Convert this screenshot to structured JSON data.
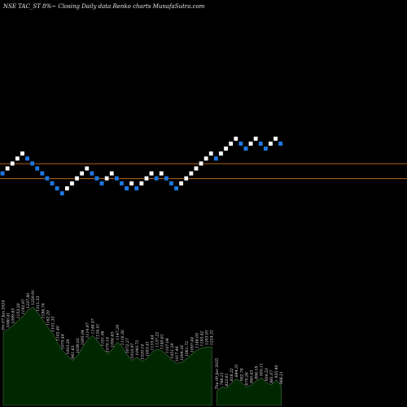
{
  "chart_data": {
    "type": "renko",
    "title": "NSE TAC_ST 8%~  Closing Daily data  Renko  charts MunafaSutra.com",
    "colors": {
      "background": "#000000",
      "up_brick": "#ffffff",
      "down_brick": "#1e78e6",
      "brick_border": "#0a0a0a",
      "reference_line": "#b4641e",
      "volume_fill": "#002800",
      "volume_stroke": "#4a6a4a",
      "volume_label": "#e8e8e8"
    },
    "reference_lines": [
      1,
      4
    ],
    "bricks": [
      {
        "level": 2,
        "dir": "down"
      },
      {
        "level": 3,
        "dir": "up"
      },
      {
        "level": 4,
        "dir": "up"
      },
      {
        "level": 5,
        "dir": "up"
      },
      {
        "level": 6,
        "dir": "up"
      },
      {
        "level": 5,
        "dir": "down"
      },
      {
        "level": 4,
        "dir": "down"
      },
      {
        "level": 3,
        "dir": "down"
      },
      {
        "level": 2,
        "dir": "down"
      },
      {
        "level": 1,
        "dir": "down"
      },
      {
        "level": 0,
        "dir": "down"
      },
      {
        "level": -1,
        "dir": "down"
      },
      {
        "level": -2,
        "dir": "down"
      },
      {
        "level": -1,
        "dir": "up"
      },
      {
        "level": 0,
        "dir": "up"
      },
      {
        "level": 1,
        "dir": "up"
      },
      {
        "level": 2,
        "dir": "up"
      },
      {
        "level": 3,
        "dir": "up"
      },
      {
        "level": 2,
        "dir": "down"
      },
      {
        "level": 1,
        "dir": "down"
      },
      {
        "level": 0,
        "dir": "down"
      },
      {
        "level": 1,
        "dir": "up"
      },
      {
        "level": 2,
        "dir": "up"
      },
      {
        "level": 1,
        "dir": "down"
      },
      {
        "level": 0,
        "dir": "down"
      },
      {
        "level": -1,
        "dir": "down"
      },
      {
        "level": 0,
        "dir": "up"
      },
      {
        "level": -1,
        "dir": "down"
      },
      {
        "level": 0,
        "dir": "up"
      },
      {
        "level": 1,
        "dir": "up"
      },
      {
        "level": 2,
        "dir": "up"
      },
      {
        "level": 1,
        "dir": "down"
      },
      {
        "level": 2,
        "dir": "up"
      },
      {
        "level": 1,
        "dir": "down"
      },
      {
        "level": 0,
        "dir": "down"
      },
      {
        "level": -1,
        "dir": "down"
      },
      {
        "level": 0,
        "dir": "up"
      },
      {
        "level": 1,
        "dir": "up"
      },
      {
        "level": 2,
        "dir": "up"
      },
      {
        "level": 3,
        "dir": "up"
      },
      {
        "level": 4,
        "dir": "up"
      },
      {
        "level": 5,
        "dir": "up"
      },
      {
        "level": 6,
        "dir": "up"
      },
      {
        "level": 5,
        "dir": "down"
      },
      {
        "level": 6,
        "dir": "up"
      },
      {
        "level": 7,
        "dir": "up"
      },
      {
        "level": 8,
        "dir": "up"
      },
      {
        "level": 9,
        "dir": "up"
      },
      {
        "level": 8,
        "dir": "down"
      },
      {
        "level": 7,
        "dir": "down"
      },
      {
        "level": 8,
        "dir": "up"
      },
      {
        "level": 9,
        "dir": "up"
      },
      {
        "level": 8,
        "dir": "down"
      },
      {
        "level": 7,
        "dir": "down"
      },
      {
        "level": 8,
        "dir": "up"
      },
      {
        "level": 9,
        "dir": "up"
      },
      {
        "level": 8,
        "dir": "down"
      }
    ],
    "volume": [
      {
        "label": "Fri 07 Jun 2024",
        "value": 0.72
      },
      {
        "label": "1080.41",
        "value": 0.74
      },
      {
        "label": "1099.83",
        "value": 0.78
      },
      {
        "label": "1153.20",
        "value": 0.83
      },
      {
        "label": "1192.97",
        "value": 0.87
      },
      {
        "label": "1237.80",
        "value": 0.93
      },
      {
        "label": "1259.91",
        "value": 0.96
      },
      {
        "label": "1211.33",
        "value": 0.9
      },
      {
        "label": "1186.74",
        "value": 0.83
      },
      {
        "label": "1162.20",
        "value": 0.76
      },
      {
        "label": "1101.33",
        "value": 0.7
      },
      {
        "label": "1102.40",
        "value": 0.61
      },
      {
        "label": "1075.44",
        "value": 0.53
      },
      {
        "label": "1003.20",
        "value": 0.48
      },
      {
        "label": "961.63",
        "value": 0.44
      },
      {
        "label": "1036.02",
        "value": 0.49
      },
      {
        "label": "1095.04",
        "value": 0.57
      },
      {
        "label": "1114.97",
        "value": 0.64
      },
      {
        "label": "1146.57",
        "value": 0.68
      },
      {
        "label": "1124.41",
        "value": 0.63
      },
      {
        "label": "1101.06",
        "value": 0.56
      },
      {
        "label": "1070.14",
        "value": 0.5
      },
      {
        "label": "1094.65",
        "value": 0.55
      },
      {
        "label": "1147.29",
        "value": 0.62
      },
      {
        "label": "1116.30",
        "value": 0.57
      },
      {
        "label": "1072.27",
        "value": 0.49
      },
      {
        "label": "1016.97",
        "value": 0.44
      },
      {
        "label": "1040.72",
        "value": 0.47
      },
      {
        "label": "1020.14",
        "value": 0.43
      },
      {
        "label": "1053.41",
        "value": 0.46
      },
      {
        "label": "1110.44",
        "value": 0.52
      },
      {
        "label": "1137.22",
        "value": 0.55
      },
      {
        "label": "1140.61",
        "value": 0.53
      },
      {
        "label": "1107.04",
        "value": 0.49
      },
      {
        "label": "1051.29",
        "value": 0.44
      },
      {
        "label": "1017.48",
        "value": 0.41
      },
      {
        "label": "1004.16",
        "value": 0.42
      },
      {
        "label": "1061.72",
        "value": 0.46
      },
      {
        "label": "1097.44",
        "value": 0.5
      },
      {
        "label": "1148.05",
        "value": 0.54
      },
      {
        "label": "1185.42",
        "value": 0.56
      },
      {
        "label": "1203.91",
        "value": 0.57
      },
      {
        "label": "1224.31",
        "value": 0.57
      },
      {
        "label": "Thu 09 Jan 2025",
        "value": 0.14
      },
      {
        "label": "766.21",
        "value": 0.18
      },
      {
        "label": "823.61",
        "value": 0.17
      },
      {
        "label": "818.22",
        "value": 0.22
      },
      {
        "label": "844.31",
        "value": 0.26
      },
      {
        "label": "902.74",
        "value": 0.22
      },
      {
        "label": "875.26",
        "value": 0.18
      },
      {
        "label": "840.43",
        "value": 0.2
      },
      {
        "label": "896.18",
        "value": 0.24
      },
      {
        "label": "955.11",
        "value": 0.27
      },
      {
        "label": "924.53",
        "value": 0.22
      },
      {
        "label": "881.07",
        "value": 0.2
      },
      {
        "label": "935.40",
        "value": 0.25
      },
      {
        "label": "968.21",
        "value": 0.19
      }
    ]
  }
}
